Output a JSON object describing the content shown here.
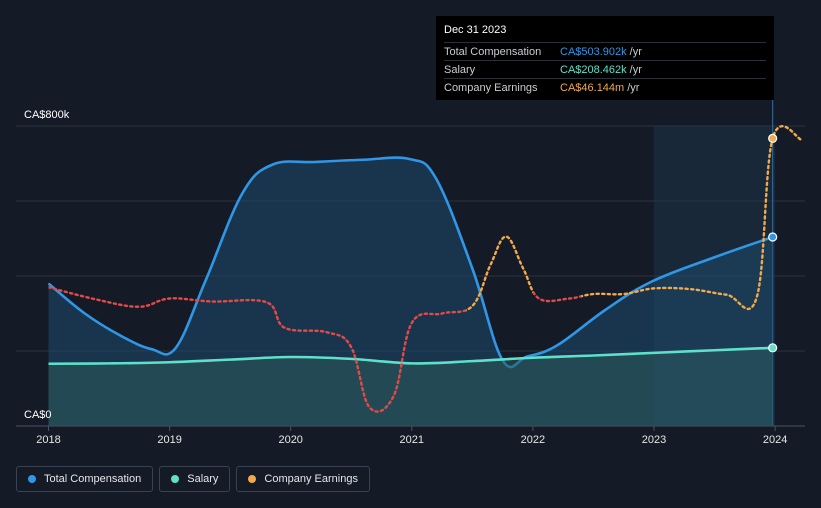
{
  "chart_data": {
    "type": "line",
    "x_ticks": [
      "2018",
      "2019",
      "2020",
      "2021",
      "2022",
      "2023",
      "2024"
    ],
    "y_axis_labels": [
      "CA$800k",
      "CA$0"
    ],
    "ylim": [
      0,
      800
    ],
    "grid": true,
    "highlight_region": {
      "from": 2023.0,
      "to": 2024.0
    },
    "series": [
      {
        "name": "Total Compensation",
        "color": "#2f97e6",
        "style": "solid-area",
        "points": [
          [
            2018.0,
            380
          ],
          [
            2018.3,
            300
          ],
          [
            2018.6,
            240
          ],
          [
            2018.85,
            205
          ],
          [
            2019.05,
            208
          ],
          [
            2019.3,
            390
          ],
          [
            2019.6,
            620
          ],
          [
            2019.85,
            697
          ],
          [
            2020.2,
            704
          ],
          [
            2020.6,
            710
          ],
          [
            2020.98,
            712
          ],
          [
            2021.2,
            660
          ],
          [
            2021.5,
            420
          ],
          [
            2021.75,
            175
          ],
          [
            2021.95,
            185
          ],
          [
            2022.2,
            215
          ],
          [
            2022.6,
            310
          ],
          [
            2022.98,
            385
          ],
          [
            2023.5,
            450
          ],
          [
            2023.98,
            504
          ]
        ]
      },
      {
        "name": "Salary",
        "color": "#5fe0c9",
        "style": "solid-area",
        "points": [
          [
            2018.0,
            166
          ],
          [
            2018.5,
            167
          ],
          [
            2019.0,
            170
          ],
          [
            2019.5,
            177
          ],
          [
            2020.0,
            184
          ],
          [
            2020.5,
            179
          ],
          [
            2021.0,
            167
          ],
          [
            2021.5,
            173
          ],
          [
            2022.0,
            182
          ],
          [
            2022.5,
            188
          ],
          [
            2023.0,
            195
          ],
          [
            2023.5,
            202
          ],
          [
            2023.98,
            208.462
          ]
        ]
      },
      {
        "name": "Company Earnings",
        "color": "#f0a94d",
        "style": "dotted",
        "points": [
          [
            2018.0,
            370
          ],
          [
            2018.4,
            337
          ],
          [
            2018.75,
            318
          ],
          [
            2019.0,
            340
          ],
          [
            2019.35,
            332
          ],
          [
            2019.8,
            330
          ],
          [
            2019.95,
            262
          ],
          [
            2020.3,
            250
          ],
          [
            2020.5,
            210
          ],
          [
            2020.65,
            50
          ],
          [
            2020.85,
            80
          ],
          [
            2021.0,
            275
          ],
          [
            2021.25,
            300
          ],
          [
            2021.5,
            320
          ],
          [
            2021.65,
            430
          ],
          [
            2021.78,
            505
          ],
          [
            2021.92,
            420
          ],
          [
            2022.05,
            340
          ],
          [
            2022.3,
            340
          ],
          [
            2022.5,
            352
          ],
          [
            2022.75,
            352
          ],
          [
            2023.0,
            367
          ],
          [
            2023.3,
            365
          ],
          [
            2023.6,
            350
          ],
          [
            2023.85,
            345
          ],
          [
            2023.98,
            767
          ],
          [
            2024.22,
            763
          ]
        ],
        "color_segments": [
          {
            "from": 2018.0,
            "to": 2021.45,
            "color": "#e24a4a"
          },
          {
            "from": 2021.45,
            "to": 2022.0,
            "color": "#f0a94d"
          },
          {
            "from": 2022.0,
            "to": 2022.4,
            "color": "#e24a4a"
          },
          {
            "from": 2022.4,
            "to": 2024.22,
            "color": "#f0a94d"
          }
        ]
      }
    ],
    "end_markers": [
      {
        "series": "Total Compensation",
        "x": 2023.98,
        "y": 504,
        "color": "#2f97e6"
      },
      {
        "series": "Salary",
        "x": 2023.98,
        "y": 208.462,
        "color": "#5fe0c9"
      },
      {
        "series": "Company Earnings",
        "x": 2023.98,
        "y": 767,
        "color": "#f0a94d"
      }
    ]
  },
  "tooltip": {
    "title": "Dec 31 2023",
    "rows": [
      {
        "name": "Total Compensation",
        "value": "CA$503.902k",
        "unit": "/yr",
        "color": "#2f97e6"
      },
      {
        "name": "Salary",
        "value": "CA$208.462k",
        "unit": "/yr",
        "color": "#5fe0c9"
      },
      {
        "name": "Company Earnings",
        "value": "CA$46.144m",
        "unit": "/yr",
        "color": "#f0a94d"
      }
    ]
  },
  "legend": [
    {
      "label": "Total Compensation",
      "color": "#2f97e6"
    },
    {
      "label": "Salary",
      "color": "#5fe0c9"
    },
    {
      "label": "Company Earnings",
      "color": "#f0a94d"
    }
  ]
}
